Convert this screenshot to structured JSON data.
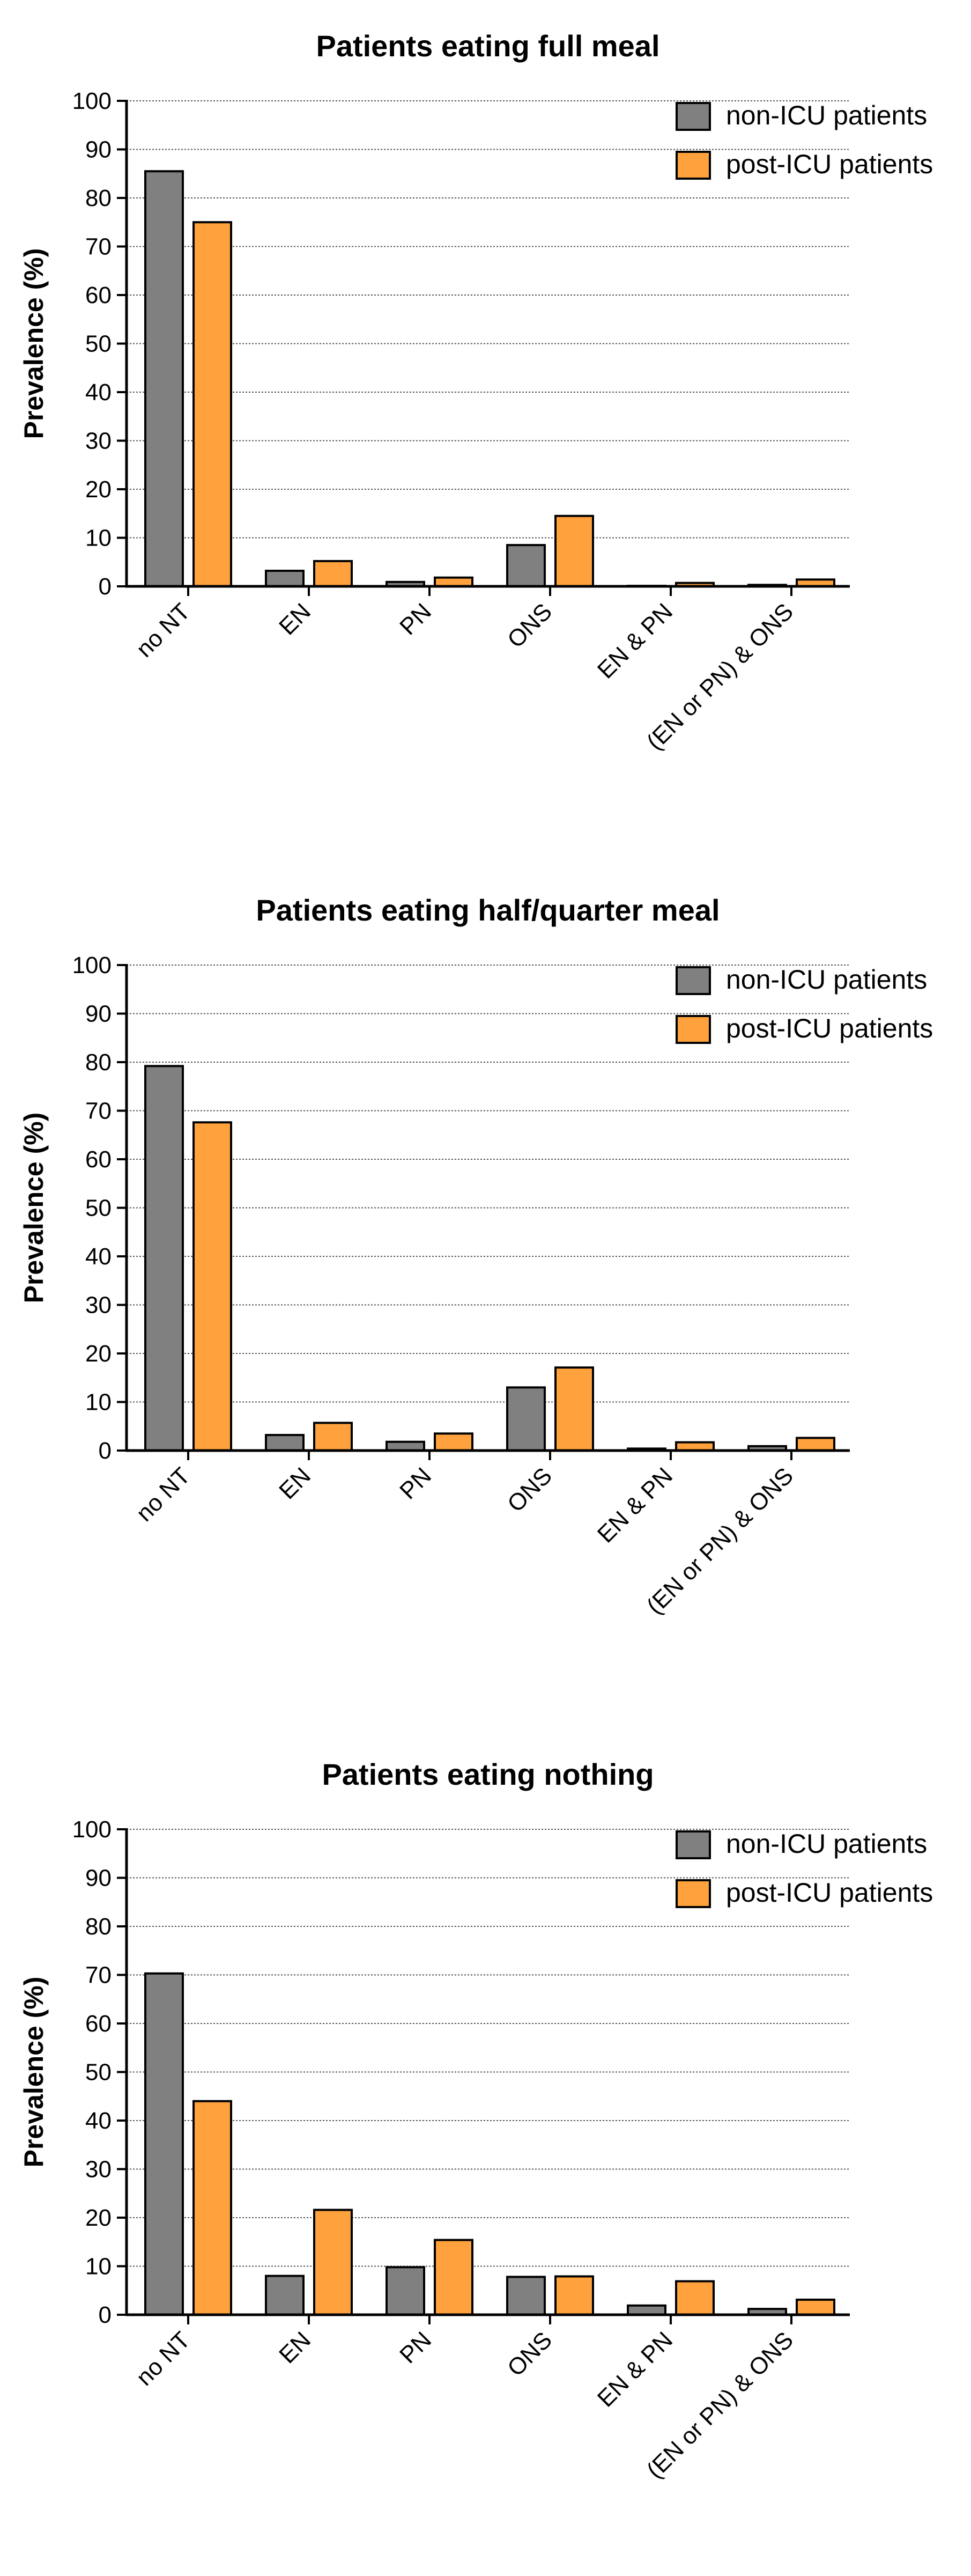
{
  "colors": {
    "non_icu": "#808080",
    "post_icu": "#FFA23E",
    "axis": "#000000",
    "grid": "#555555"
  },
  "chart_data": [
    {
      "type": "bar",
      "title": "Patients eating full meal",
      "ylabel": "Prevalence (%)",
      "xlabel": "",
      "ylim": [
        0,
        100
      ],
      "yticks": [
        "0",
        "10",
        "20",
        "30",
        "40",
        "50",
        "60",
        "70",
        "80",
        "90",
        "100"
      ],
      "grid": true,
      "legend": "top-right",
      "categories": [
        "no NT",
        "EN",
        "PN",
        "ONS",
        "EN & PN",
        "(EN or PN) & ONS"
      ],
      "series": [
        {
          "name": "non-ICU patients",
          "values": [
            85.5,
            3.2,
            0.9,
            8.5,
            0.1,
            0.3
          ]
        },
        {
          "name": "post-ICU patients",
          "values": [
            75.0,
            5.2,
            1.8,
            14.5,
            0.7,
            1.4
          ]
        }
      ]
    },
    {
      "type": "bar",
      "title": "Patients eating half/quarter meal",
      "ylabel": "Prevalence (%)",
      "xlabel": "",
      "ylim": [
        0,
        100
      ],
      "yticks": [
        "0",
        "10",
        "20",
        "30",
        "40",
        "50",
        "60",
        "70",
        "80",
        "90",
        "100"
      ],
      "grid": true,
      "legend": "top-right",
      "categories": [
        "no NT",
        "EN",
        "PN",
        "ONS",
        "EN & PN",
        "(EN or PN) & ONS"
      ],
      "series": [
        {
          "name": "non-ICU patients",
          "values": [
            79.2,
            3.2,
            1.8,
            13.0,
            0.4,
            0.9
          ]
        },
        {
          "name": "post-ICU patients",
          "values": [
            67.6,
            5.7,
            3.5,
            17.1,
            1.7,
            2.6
          ]
        }
      ]
    },
    {
      "type": "bar",
      "title": "Patients eating nothing",
      "ylabel": "Prevalence (%)",
      "xlabel": "",
      "ylim": [
        0,
        100
      ],
      "yticks": [
        "0",
        "10",
        "20",
        "30",
        "40",
        "50",
        "60",
        "70",
        "80",
        "90",
        "100"
      ],
      "grid": true,
      "legend": "top-right",
      "categories": [
        "no NT",
        "EN",
        "PN",
        "ONS",
        "EN & PN",
        "(EN or PN) & ONS"
      ],
      "series": [
        {
          "name": "non-ICU patients",
          "values": [
            70.3,
            8.0,
            9.8,
            7.8,
            1.9,
            1.2
          ]
        },
        {
          "name": "post-ICU patients",
          "values": [
            44.0,
            21.6,
            15.4,
            7.9,
            6.9,
            3.1
          ]
        }
      ]
    }
  ]
}
